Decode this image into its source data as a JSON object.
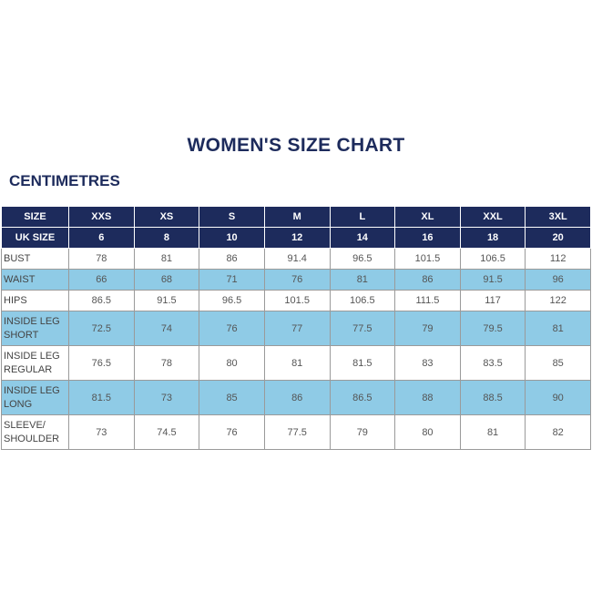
{
  "title": "WOMEN'S SIZE CHART",
  "unit": "CENTIMETRES",
  "table": {
    "columns": [
      "SIZE",
      "XXS",
      "XS",
      "S",
      "M",
      "L",
      "XL",
      "XXL",
      "3XL"
    ],
    "rows": [
      {
        "label": "UK SIZE",
        "values": [
          6,
          8,
          10,
          12,
          14,
          16,
          18,
          20
        ]
      },
      {
        "label": "BUST",
        "values": [
          78,
          81,
          86,
          91.4,
          96.5,
          101.5,
          106.5,
          112
        ]
      },
      {
        "label": "WAIST",
        "values": [
          66,
          68,
          71,
          76,
          81,
          86,
          91.5,
          96
        ]
      },
      {
        "label": "HIPS",
        "values": [
          86.5,
          91.5,
          96.5,
          101.5,
          106.5,
          111.5,
          117,
          122
        ]
      },
      {
        "label": "INSIDE LEG\nSHORT",
        "values": [
          72.5,
          74,
          76,
          77,
          77.5,
          79,
          79.5,
          81
        ]
      },
      {
        "label": "INSIDE LEG\nREGULAR",
        "values": [
          76.5,
          78,
          80,
          81,
          81.5,
          83,
          83.5,
          85
        ]
      },
      {
        "label": "INSIDE LEG\nLONG",
        "values": [
          81.5,
          73,
          85,
          86,
          86.5,
          88,
          88.5,
          90
        ]
      },
      {
        "label": "SLEEVE/\nSHOULDER",
        "values": [
          73,
          74.5,
          76,
          77.5,
          79,
          80,
          81,
          82
        ]
      }
    ]
  }
}
